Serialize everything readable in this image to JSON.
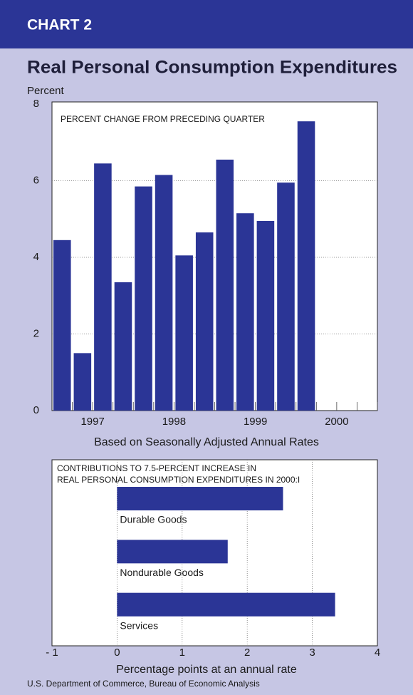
{
  "header": {
    "label": "CHART 2",
    "title": "Real Personal Consumption Expenditures"
  },
  "source": "U.S. Department of Commerce, Bureau of Economic Analysis",
  "chart_data": [
    {
      "type": "bar",
      "y_label": "Percent",
      "annotation": "PERCENT CHANGE FROM PRECEDING QUARTER",
      "x_label": "Based on Seasonally Adjusted Annual Rates",
      "categories": [
        null,
        "1997",
        null,
        null,
        null,
        "1998",
        null,
        null,
        null,
        "1999",
        null,
        null,
        null,
        "2000",
        null,
        null
      ],
      "values": [
        4.45,
        1.5,
        6.45,
        3.35,
        5.85,
        6.15,
        4.05,
        4.65,
        6.55,
        5.15,
        4.95,
        5.95,
        7.55,
        null,
        null,
        null
      ],
      "color": "#2b3596",
      "ylim": [
        0,
        8
      ],
      "yticks": [
        0,
        2,
        4,
        6,
        8
      ],
      "grid": true
    },
    {
      "type": "hbar",
      "annotation": [
        "CONTRIBUTIONS TO 7.5-PERCENT INCREASE IN",
        "REAL PERSONAL CONSUMPTION EXPENDITURES IN 2000:I"
      ],
      "x_label": "Percentage points at an annual rate",
      "categories": [
        "Durable Goods",
        "Nondurable Goods",
        "Services"
      ],
      "values": [
        2.55,
        1.7,
        3.35
      ],
      "color": "#2b3596",
      "xlim": [
        -1,
        4
      ],
      "xticks": [
        {
          "value": -1,
          "label": "- 1"
        },
        0,
        1,
        2,
        3,
        4
      ],
      "grid": true
    }
  ]
}
